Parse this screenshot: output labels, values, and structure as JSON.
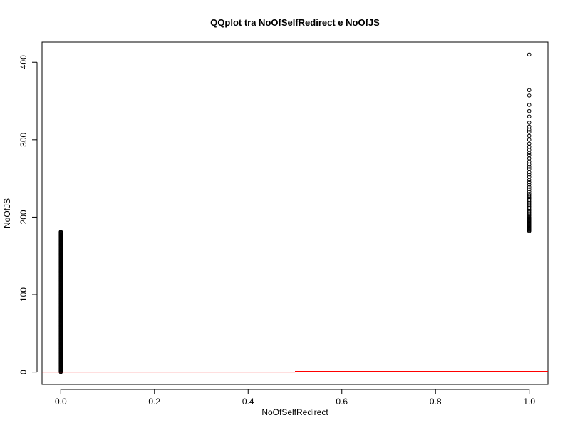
{
  "chart_data": {
    "type": "scatter",
    "title": "QQplot tra NoOfSelfRedirect e NoOfJS",
    "xlabel": "NoOfSelfRedirect",
    "ylabel": "NoOfJS",
    "xlim": [
      -0.04,
      1.04
    ],
    "ylim": [
      -16,
      426
    ],
    "x_ticks": [
      0,
      0.2,
      0.4,
      0.6,
      0.8,
      1
    ],
    "x_tick_labels": [
      "0.0",
      "0.2",
      "0.4",
      "0.6",
      "0.8",
      "1.0"
    ],
    "y_ticks": [
      0,
      100,
      200,
      300,
      400
    ],
    "y_tick_labels": [
      "0",
      "100",
      "200",
      "300",
      "400"
    ],
    "series": [
      {
        "x": 0,
        "y_range": [
          0,
          181
        ],
        "description_points": "dense column of points"
      },
      {
        "x": 1,
        "y_values": [
          182,
          183,
          184,
          185,
          186,
          187,
          188,
          189,
          190,
          191,
          192,
          193,
          194,
          195,
          196,
          197,
          198,
          199,
          200,
          202,
          204,
          206,
          208,
          210,
          212,
          214,
          216,
          218,
          220,
          222,
          224,
          226,
          228,
          230,
          233,
          236,
          239,
          242,
          245,
          248,
          252,
          255,
          258,
          262,
          265,
          268,
          272,
          276,
          280,
          283,
          287,
          291,
          295,
          300,
          305,
          310,
          313,
          317,
          322,
          330,
          337,
          345,
          357,
          364,
          410
        ]
      }
    ],
    "reference_line": {
      "color": "#ff0000",
      "segments": [
        {
          "x": [
            -0.04,
            0.5
          ],
          "y": [
            0,
            0
          ]
        },
        {
          "x": [
            0.5,
            1.04
          ],
          "y": [
            1,
            1
          ]
        }
      ]
    },
    "point_color": "#000000",
    "grid": false,
    "legend": "none"
  }
}
